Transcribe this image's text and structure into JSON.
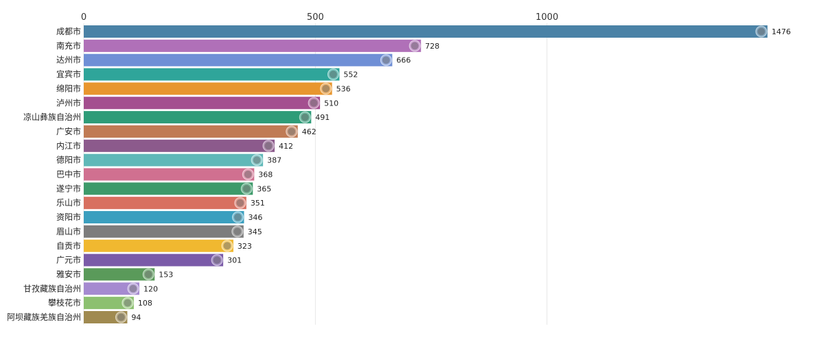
{
  "chart_data": {
    "type": "bar",
    "orientation": "horizontal",
    "xlim": [
      0,
      1600
    ],
    "xticks": [
      0,
      500,
      1000
    ],
    "grid": true,
    "legend": "none",
    "categories": [
      "成都市",
      "南充市",
      "达州市",
      "宜宾市",
      "绵阳市",
      "泸州市",
      "凉山彝族自治州",
      "广安市",
      "内江市",
      "德阳市",
      "巴中市",
      "遂宁市",
      "乐山市",
      "资阳市",
      "眉山市",
      "自贡市",
      "广元市",
      "雅安市",
      "甘孜藏族自治州",
      "攀枝花市",
      "阿坝藏族羌族自治州"
    ],
    "values": [
      1476,
      728,
      666,
      552,
      536,
      510,
      491,
      462,
      412,
      387,
      368,
      365,
      351,
      346,
      345,
      323,
      301,
      153,
      120,
      108,
      94
    ],
    "colors": [
      "#4a82a6",
      "#b070b8",
      "#6f8fd6",
      "#2fa59a",
      "#e8962e",
      "#a44f8f",
      "#2e9c78",
      "#c07b55",
      "#8c5a8c",
      "#5fb8b8",
      "#d07090",
      "#3d9a6a",
      "#d87060",
      "#3a9fbf",
      "#7d7d7d",
      "#f0b830",
      "#7a5aa8",
      "#5a9a5a",
      "#a58ad0",
      "#8cc070",
      "#a08a50"
    ]
  }
}
